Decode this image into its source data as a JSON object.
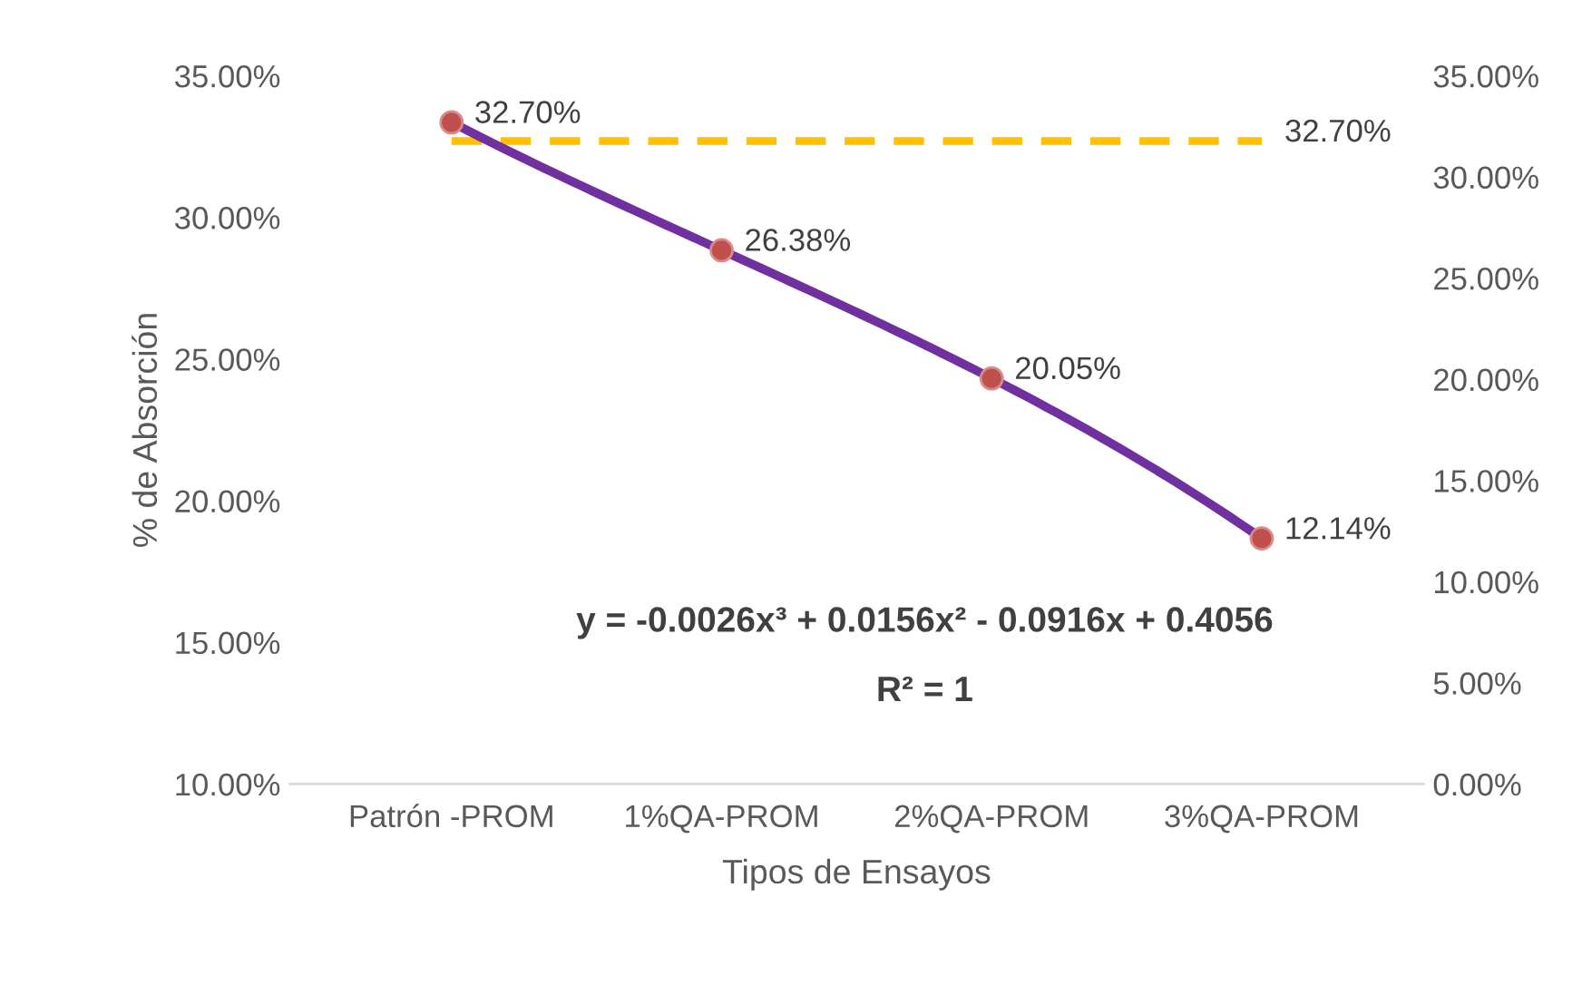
{
  "chart_data": {
    "type": "line",
    "xlabel": "Tipos de Ensayos",
    "ylabel": "% de Absorción",
    "categories": [
      "Patrón -PROM",
      "1%QA-PROM",
      "2%QA-PROM",
      "3%QA-PROM"
    ],
    "series": [
      {
        "color": "#ffc000",
        "line_style": "dashed",
        "marker": "none",
        "axis": "y",
        "values": [
          32.7,
          32.7,
          32.7,
          32.7
        ],
        "value_labels": [
          null,
          null,
          null,
          "32.70%"
        ]
      },
      {
        "color": "#7030a0",
        "line_style": "solid",
        "marker": "none",
        "axis": "y2",
        "values": [
          32.7,
          26.38,
          20.05,
          12.14
        ]
      },
      {
        "type": "scatter",
        "color": "#c0504d",
        "marker": "circle",
        "axis": "y2",
        "values": [
          32.7,
          26.38,
          20.05,
          12.14
        ],
        "value_labels": [
          "32.70%",
          "26.38%",
          "20.05%",
          "12.14%"
        ]
      }
    ],
    "ylim": [
      10,
      35
    ],
    "yticks": [
      {
        "value": 10,
        "label": "10.00%"
      },
      {
        "value": 15,
        "label": "15.00%"
      },
      {
        "value": 20,
        "label": "20.00%"
      },
      {
        "value": 25,
        "label": "25.00%"
      },
      {
        "value": 30,
        "label": "30.00%"
      },
      {
        "value": 35,
        "label": "35.00%"
      }
    ],
    "y2lim": [
      0,
      35
    ],
    "y2ticks": [
      {
        "value": 0,
        "label": "0.00%"
      },
      {
        "value": 5,
        "label": "5.00%"
      },
      {
        "value": 10,
        "label": "10.00%"
      },
      {
        "value": 15,
        "label": "15.00%"
      },
      {
        "value": 20,
        "label": "20.00%"
      },
      {
        "value": 25,
        "label": "25.00%"
      },
      {
        "value": 30,
        "label": "30.00%"
      },
      {
        "value": 35,
        "label": "35.00%"
      }
    ],
    "annotations": [
      "y = -0.0026x³ + 0.0156x² - 0.0916x + 0.4056",
      "R² = 1"
    ],
    "grid": false,
    "legend": false
  }
}
